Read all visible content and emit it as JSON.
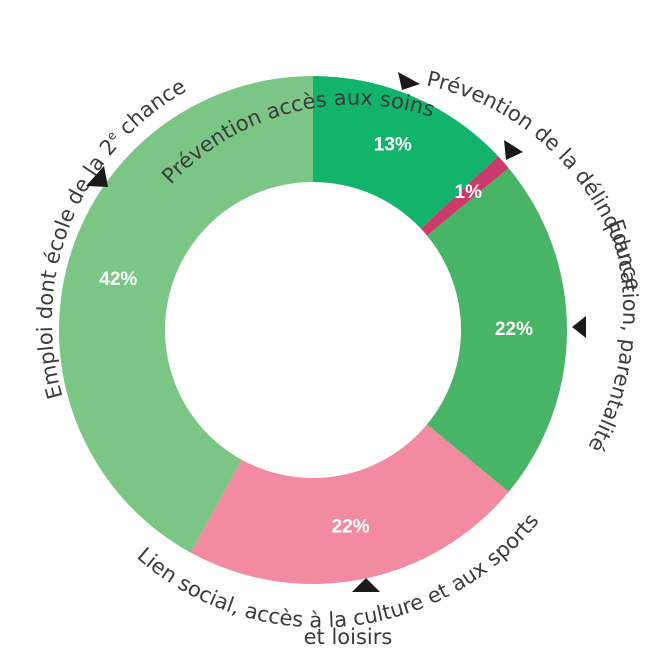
{
  "chart_data": {
    "type": "pie",
    "donut": true,
    "slices": [
      {
        "label": "Prévention accès aux soins",
        "value": 13,
        "display": "13%",
        "color": "#12b36a"
      },
      {
        "label": "Prévention de la délinquance",
        "value": 1,
        "display": "1%",
        "color": "#c93b6a"
      },
      {
        "label": "Education, parentalité",
        "value": 22,
        "display": "22%",
        "color": "#47b565"
      },
      {
        "label": "Lien social, accès à la culture et aux sports et loisirs",
        "value": 22,
        "display": "22%",
        "color": "#f28aa2"
      },
      {
        "label": "Emploi dont école de la 2e chance",
        "value": 42,
        "display": "42%",
        "color": "#7bc585"
      }
    ]
  },
  "labels": {
    "soins": "Prévention accès aux soins",
    "delinquance": "Prévention de la délinquance",
    "education": "Education, parentalité",
    "lien_line1": "Lien social, accès à la culture et aux sports",
    "lien_line2": "et loisirs",
    "emploi_part1": "Emploi dont école de la 2",
    "emploi_sup": "e",
    "emploi_part2": " chance"
  }
}
